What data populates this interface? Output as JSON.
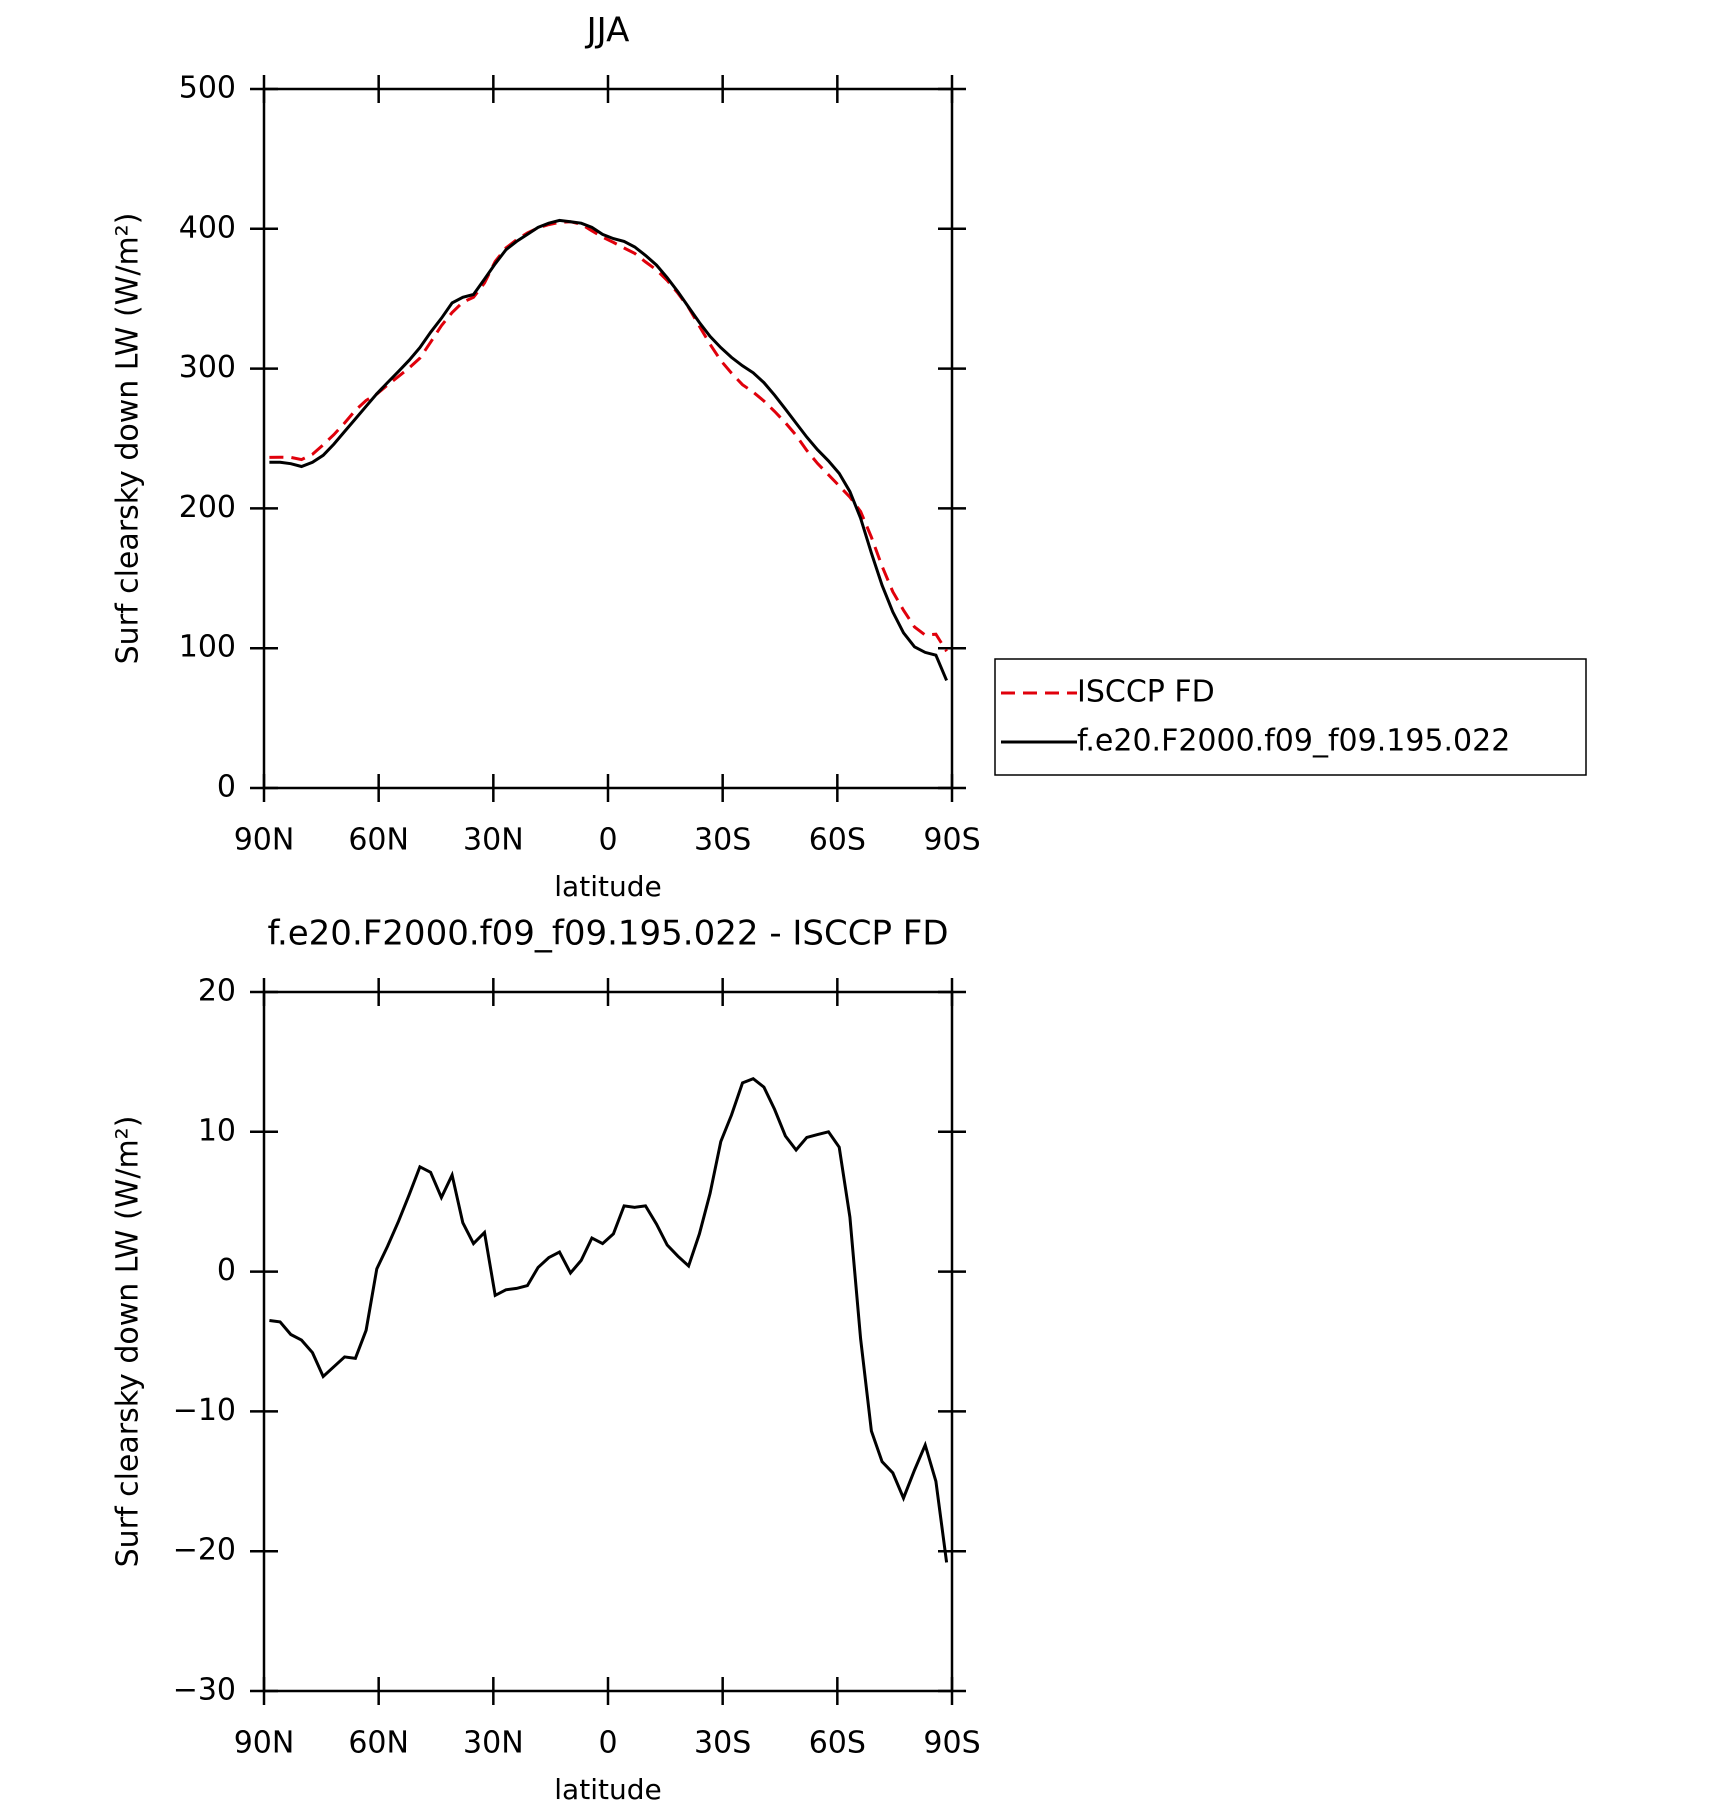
{
  "chart_data": [
    {
      "type": "line",
      "title": "JJA",
      "xlabel": "latitude",
      "ylabel": "Surf clearsky down LW (W/m²)",
      "x": [
        88.6,
        85.8,
        83.0,
        80.2,
        77.3,
        74.5,
        71.7,
        68.9,
        66.1,
        63.3,
        60.5,
        57.7,
        54.8,
        52.0,
        49.2,
        46.4,
        43.6,
        40.8,
        38.0,
        35.2,
        32.3,
        29.5,
        26.7,
        23.9,
        21.1,
        18.3,
        15.5,
        12.7,
        9.8,
        7.0,
        4.2,
        1.4,
        -1.4,
        -4.2,
        -7.0,
        -9.8,
        -12.7,
        -15.5,
        -18.3,
        -21.1,
        -23.9,
        -26.7,
        -29.5,
        -32.3,
        -35.2,
        -38.0,
        -40.8,
        -43.6,
        -46.4,
        -49.2,
        -52.0,
        -54.8,
        -57.7,
        -60.5,
        -63.3,
        -66.1,
        -68.9,
        -71.7,
        -74.5,
        -77.3,
        -80.2,
        -83.0,
        -85.8,
        -88.6
      ],
      "series": [
        {
          "name": "ISCCP FD",
          "color": "#e0000b",
          "dashed": true,
          "values": [
            236.5,
            236.6,
            236.5,
            234.9,
            238.8,
            245.5,
            252.8,
            261.1,
            270.2,
            277.2,
            281.8,
            288.2,
            294.4,
            300.5,
            307.5,
            318.9,
            330.7,
            340.1,
            347.5,
            351,
            361.2,
            376.7,
            386.3,
            392.2,
            397,
            400.7,
            403,
            404.6,
            405.1,
            403.2,
            398.6,
            394,
            390.3,
            386.3,
            382.4,
            376.3,
            370.6,
            363.1,
            353.9,
            343.6,
            330.3,
            317.4,
            305.7,
            296.8,
            288.5,
            283.2,
            276.8,
            269.4,
            261.3,
            252.3,
            241.4,
            232.2,
            224,
            216.1,
            208.1,
            197.8,
            179.4,
            158.6,
            140.4,
            127.2,
            115.2,
            109.4,
            110,
            97.8
          ]
        },
        {
          "name": "f.e20.F2000.f09_f09.195.022",
          "color": "#000000",
          "dashed": false,
          "values": [
            233,
            233,
            232,
            230,
            233,
            238,
            246,
            255,
            264,
            273,
            282,
            290,
            298,
            306,
            315,
            326,
            336,
            347,
            351,
            353,
            364,
            375,
            385,
            391,
            396,
            401,
            404,
            406,
            405,
            404,
            401,
            396,
            393,
            391,
            387,
            381,
            374,
            365,
            355,
            344,
            333,
            323,
            315,
            308,
            302,
            297,
            290,
            281,
            271,
            261,
            251,
            242,
            234,
            225,
            212,
            193,
            168,
            145,
            126,
            111,
            101,
            97,
            95,
            77
          ]
        }
      ],
      "xlim": [
        90,
        -90
      ],
      "xticks": [
        {
          "value": 90,
          "label": "90N"
        },
        {
          "value": 60,
          "label": "60N"
        },
        {
          "value": 30,
          "label": "30N"
        },
        0,
        {
          "value": -30,
          "label": "30S"
        },
        {
          "value": -60,
          "label": "60S"
        },
        {
          "value": -90,
          "label": "90S"
        }
      ],
      "ylim": [
        0,
        500
      ],
      "yticks": [
        0,
        100,
        200,
        300,
        400,
        500
      ],
      "legend": "right"
    },
    {
      "type": "line",
      "title": "f.e20.F2000.f09_f09.195.022 - ISCCP FD",
      "xlabel": "latitude",
      "ylabel": "Surf clearsky down LW (W/m²)",
      "x": [
        88.6,
        85.8,
        83.0,
        80.2,
        77.3,
        74.5,
        71.7,
        68.9,
        66.1,
        63.3,
        60.5,
        57.7,
        54.8,
        52.0,
        49.2,
        46.4,
        43.6,
        40.8,
        38.0,
        35.2,
        32.3,
        29.5,
        26.7,
        23.9,
        21.1,
        18.3,
        15.5,
        12.7,
        9.8,
        7.0,
        4.2,
        1.4,
        -1.4,
        -4.2,
        -7.0,
        -9.8,
        -12.7,
        -15.5,
        -18.3,
        -21.1,
        -23.9,
        -26.7,
        -29.5,
        -32.3,
        -35.2,
        -38.0,
        -40.8,
        -43.6,
        -46.4,
        -49.2,
        -52.0,
        -54.8,
        -57.7,
        -60.5,
        -63.3,
        -66.1,
        -68.9,
        -71.7,
        -74.5,
        -77.3,
        -80.2,
        -83.0,
        -85.8,
        -88.6
      ],
      "values": [
        -3.5,
        -3.6,
        -4.5,
        -4.9,
        -5.8,
        -7.5,
        -6.8,
        -6.1,
        -6.2,
        -4.2,
        0.2,
        1.8,
        3.6,
        5.5,
        7.5,
        7.1,
        5.3,
        6.9,
        3.5,
        2.0,
        2.8,
        -1.7,
        -1.3,
        -1.2,
        -1.0,
        0.3,
        1.0,
        1.4,
        -0.1,
        0.8,
        2.4,
        2.0,
        2.7,
        4.7,
        4.6,
        4.7,
        3.4,
        1.9,
        1.1,
        0.4,
        2.7,
        5.6,
        9.3,
        11.2,
        13.5,
        13.8,
        13.2,
        11.6,
        9.7,
        8.7,
        9.6,
        9.8,
        10.0,
        8.9,
        3.9,
        -4.8,
        -11.4,
        -13.6,
        -14.4,
        -16.2,
        -14.2,
        -12.4,
        -15.0,
        -20.8
      ],
      "color": "#000000",
      "xlim": [
        90,
        -90
      ],
      "xticks": [
        {
          "value": 90,
          "label": "90N"
        },
        {
          "value": 60,
          "label": "60N"
        },
        {
          "value": 30,
          "label": "30N"
        },
        0,
        {
          "value": -30,
          "label": "30S"
        },
        {
          "value": -60,
          "label": "60S"
        },
        {
          "value": -90,
          "label": "90S"
        }
      ],
      "ylim": [
        -30,
        20
      ],
      "yticks": [
        {
          "value": -30,
          "label": "−30"
        },
        {
          "value": -20,
          "label": "−20"
        },
        {
          "value": -10,
          "label": "−10"
        },
        0,
        10,
        20
      ]
    }
  ]
}
